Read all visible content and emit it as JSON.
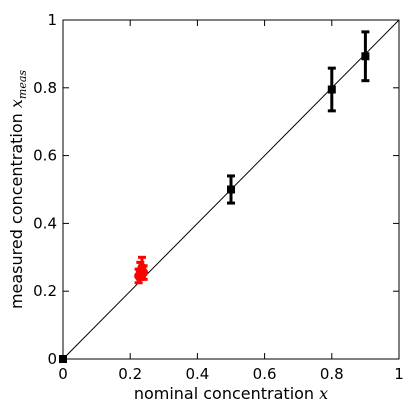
{
  "chart_data": {
    "type": "scatter",
    "xlabel": {
      "text": "nominal concentration ",
      "math": "x"
    },
    "ylabel": {
      "text": "measured concentration ",
      "math": "x",
      "sub": "meas"
    },
    "xlim": [
      0,
      1
    ],
    "ylim": [
      0,
      1
    ],
    "x_ticks": [
      "0",
      "0.2",
      "0.4",
      "0.6",
      "0.8",
      "1"
    ],
    "y_ticks": [
      "0",
      "0.2",
      "0.4",
      "0.6",
      "0.8",
      "1"
    ],
    "grid": false,
    "reference_line": {
      "from": [
        0,
        0
      ],
      "to": [
        1,
        1
      ],
      "color": "#000000"
    },
    "series": [
      {
        "marker": "square",
        "color": "#000000",
        "points": [
          {
            "x": 0.0,
            "y": 0.0,
            "err": 0.0
          },
          {
            "x": 0.5,
            "y": 0.5,
            "err": 0.04
          },
          {
            "x": 0.8,
            "y": 0.795,
            "err": 0.063
          },
          {
            "x": 0.9,
            "y": 0.893,
            "err": 0.072
          }
        ]
      },
      {
        "marker": "circle",
        "color": "#ff0000",
        "points": [
          {
            "x": 0.225,
            "y": 0.245,
            "err": 0.02
          },
          {
            "x": 0.23,
            "y": 0.26,
            "err": 0.025
          },
          {
            "x": 0.235,
            "y": 0.27,
            "err": 0.03
          },
          {
            "x": 0.24,
            "y": 0.255,
            "err": 0.02
          }
        ]
      }
    ]
  }
}
